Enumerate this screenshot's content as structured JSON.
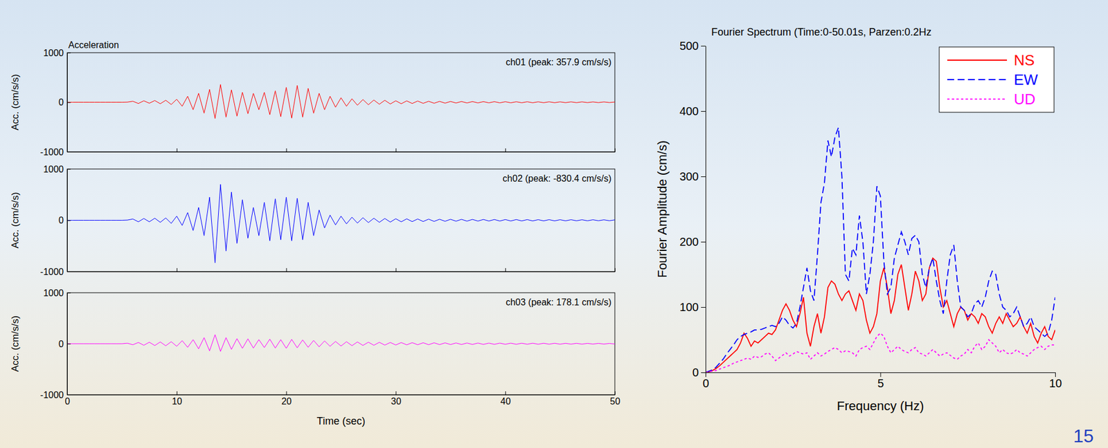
{
  "chart_data": [
    {
      "type": "line",
      "title": "Acceleration",
      "annotation": "ch01 (peak: 357.9 cm/s/s)",
      "y_label": "Acc. (cm/s/s)",
      "x": [
        0,
        0.5,
        1,
        1.5,
        2,
        2.5,
        3,
        3.5,
        4,
        4.5,
        5,
        5.5,
        6,
        6.5,
        7,
        7.5,
        8,
        8.5,
        9,
        9.5,
        10,
        10.5,
        11,
        11.5,
        12,
        12.5,
        13,
        13.5,
        14,
        14.5,
        15,
        15.5,
        16,
        16.5,
        17,
        17.5,
        18,
        18.5,
        19,
        19.5,
        20,
        20.5,
        21,
        21.5,
        22,
        22.5,
        23,
        23.5,
        24,
        24.5,
        25,
        25.5,
        26,
        26.5,
        27,
        27.5,
        28,
        28.5,
        29,
        29.5,
        30,
        30.5,
        31,
        31.5,
        32,
        32.5,
        33,
        33.5,
        34,
        34.5,
        35,
        35.5,
        36,
        36.5,
        37,
        37.5,
        38,
        38.5,
        39,
        39.5,
        40,
        40.5,
        41,
        41.5,
        42,
        42.5,
        43,
        43.5,
        44,
        44.5,
        45,
        45.5,
        46,
        46.5,
        47,
        47.5,
        48,
        48.5,
        49,
        49.5,
        50
      ],
      "series": [
        {
          "color": "#ff0000",
          "values": [
            0,
            0,
            0,
            0,
            0,
            0,
            0,
            0,
            0,
            0,
            0,
            3,
            20,
            -25,
            30,
            -20,
            35,
            -30,
            40,
            -45,
            60,
            -80,
            120,
            -150,
            180,
            -220,
            260,
            -330,
            357.9,
            -300,
            250,
            -280,
            200,
            -230,
            180,
            -150,
            200,
            -250,
            230,
            -290,
            300,
            -320,
            340,
            -300,
            280,
            -220,
            180,
            -150,
            120,
            -100,
            90,
            -80,
            70,
            -60,
            55,
            -50,
            45,
            -40,
            40,
            -35,
            30,
            -30,
            28,
            -25,
            25,
            -22,
            20,
            -20,
            18,
            -18,
            16,
            -15,
            15,
            -14,
            14,
            -13,
            13,
            -12,
            12,
            -12,
            11,
            -11,
            10,
            -10,
            10,
            -10,
            9,
            -9,
            9,
            -9,
            8,
            -8,
            8,
            -8,
            8,
            -7,
            7,
            -7,
            7,
            -6,
            5
          ]
        }
      ],
      "xlim": [
        0,
        50
      ],
      "xticks": [
        0,
        10,
        20,
        30,
        40,
        50
      ],
      "ylim": [
        -1000,
        1000
      ],
      "yticks": [
        -1000,
        0,
        1000
      ],
      "tick_labels": "y"
    },
    {
      "type": "line",
      "annotation": "ch02 (peak: -830.4 cm/s/s)",
      "y_label": "Acc. (cm/s/s)",
      "x": [
        0,
        0.5,
        1,
        1.5,
        2,
        2.5,
        3,
        3.5,
        4,
        4.5,
        5,
        5.5,
        6,
        6.5,
        7,
        7.5,
        8,
        8.5,
        9,
        9.5,
        10,
        10.5,
        11,
        11.5,
        12,
        12.5,
        13,
        13.5,
        14,
        14.5,
        15,
        15.5,
        16,
        16.5,
        17,
        17.5,
        18,
        18.5,
        19,
        19.5,
        20,
        20.5,
        21,
        21.5,
        22,
        22.5,
        23,
        23.5,
        24,
        24.5,
        25,
        25.5,
        26,
        26.5,
        27,
        27.5,
        28,
        28.5,
        29,
        29.5,
        30,
        30.5,
        31,
        31.5,
        32,
        32.5,
        33,
        33.5,
        34,
        34.5,
        35,
        35.5,
        36,
        36.5,
        37,
        37.5,
        38,
        38.5,
        39,
        39.5,
        40,
        40.5,
        41,
        41.5,
        42,
        42.5,
        43,
        43.5,
        44,
        44.5,
        45,
        45.5,
        46,
        46.5,
        47,
        47.5,
        48,
        48.5,
        49,
        49.5,
        50
      ],
      "series": [
        {
          "color": "#0000ff",
          "values": [
            0,
            0,
            0,
            0,
            0,
            0,
            0,
            0,
            0,
            0,
            0,
            4,
            25,
            -30,
            35,
            -30,
            40,
            -40,
            45,
            -60,
            80,
            -100,
            150,
            -200,
            250,
            -300,
            450,
            -830.4,
            700,
            -600,
            550,
            -450,
            400,
            -350,
            250,
            -300,
            350,
            -400,
            420,
            -380,
            450,
            -400,
            430,
            -380,
            350,
            -300,
            200,
            -150,
            100,
            -90,
            80,
            -70,
            60,
            -55,
            50,
            -45,
            40,
            -40,
            35,
            -35,
            30,
            -30,
            28,
            -26,
            25,
            -24,
            22,
            -22,
            20,
            -20,
            19,
            -18,
            18,
            -17,
            17,
            -16,
            16,
            -15,
            15,
            -15,
            14,
            -14,
            14,
            -13,
            13,
            -13,
            12,
            -12,
            12,
            -12,
            11,
            -11,
            11,
            -10,
            10,
            -10,
            10,
            -9,
            9,
            -9,
            8
          ]
        }
      ],
      "xlim": [
        0,
        50
      ],
      "xticks": [
        0,
        10,
        20,
        30,
        40,
        50
      ],
      "ylim": [
        -1000,
        1000
      ],
      "yticks": [
        -1000,
        0,
        1000
      ],
      "tick_labels": "y"
    },
    {
      "type": "line",
      "annotation": "ch03 (peak: 178.1 cm/s/s)",
      "y_label": "Acc. (cm/s/s)",
      "x_label": "Time (sec)",
      "x": [
        0,
        0.5,
        1,
        1.5,
        2,
        2.5,
        3,
        3.5,
        4,
        4.5,
        5,
        5.5,
        6,
        6.5,
        7,
        7.5,
        8,
        8.5,
        9,
        9.5,
        10,
        10.5,
        11,
        11.5,
        12,
        12.5,
        13,
        13.5,
        14,
        14.5,
        15,
        15.5,
        16,
        16.5,
        17,
        17.5,
        18,
        18.5,
        19,
        19.5,
        20,
        20.5,
        21,
        21.5,
        22,
        22.5,
        23,
        23.5,
        24,
        24.5,
        25,
        25.5,
        26,
        26.5,
        27,
        27.5,
        28,
        28.5,
        29,
        29.5,
        30,
        30.5,
        31,
        31.5,
        32,
        32.5,
        33,
        33.5,
        34,
        34.5,
        35,
        35.5,
        36,
        36.5,
        37,
        37.5,
        38,
        38.5,
        39,
        39.5,
        40,
        40.5,
        41,
        41.5,
        42,
        42.5,
        43,
        43.5,
        44,
        44.5,
        45,
        45.5,
        46,
        46.5,
        47,
        47.5,
        48,
        48.5,
        49,
        49.5,
        50
      ],
      "series": [
        {
          "color": "#ff00ff",
          "values": [
            0,
            0,
            0,
            0,
            0,
            0,
            0,
            0,
            0,
            0,
            0,
            10,
            -20,
            25,
            -30,
            30,
            -35,
            35,
            -40,
            40,
            -50,
            60,
            -70,
            80,
            -100,
            120,
            -140,
            178.1,
            -150,
            120,
            -110,
            100,
            -90,
            95,
            -85,
            80,
            -75,
            90,
            -85,
            80,
            -90,
            85,
            -80,
            75,
            -70,
            65,
            -60,
            55,
            -50,
            45,
            -45,
            40,
            -38,
            35,
            -33,
            30,
            -30,
            28,
            -27,
            25,
            -25,
            23,
            -22,
            21,
            -20,
            19,
            -19,
            18,
            -17,
            17,
            -16,
            15,
            -15,
            14,
            -14,
            13,
            -13,
            12,
            -12,
            12,
            -11,
            11,
            -11,
            10,
            -10,
            10,
            -10,
            9,
            -9,
            9,
            -9,
            8,
            -8,
            8,
            -8,
            7,
            -7,
            7,
            -7,
            6,
            -6
          ]
        }
      ],
      "xlim": [
        0,
        50
      ],
      "xticks": [
        0,
        10,
        20,
        30,
        40,
        50
      ],
      "ylim": [
        -1000,
        1000
      ],
      "yticks": [
        -1000,
        0,
        1000
      ]
    },
    {
      "type": "line",
      "title": "Fourier Spectrum (Time:0-50.01s, Parzen:0.2Hz",
      "x_label": "Frequency (Hz)",
      "y_label": "Fourier Amplitude (cm/s)",
      "x": [
        0,
        0.1,
        0.2,
        0.3,
        0.4,
        0.5,
        0.6,
        0.7,
        0.8,
        0.9,
        1,
        1.1,
        1.2,
        1.3,
        1.4,
        1.5,
        1.6,
        1.7,
        1.8,
        1.9,
        2,
        2.1,
        2.2,
        2.3,
        2.4,
        2.5,
        2.6,
        2.7,
        2.8,
        2.9,
        3,
        3.1,
        3.2,
        3.3,
        3.4,
        3.5,
        3.6,
        3.7,
        3.8,
        3.9,
        4,
        4.1,
        4.2,
        4.3,
        4.4,
        4.5,
        4.6,
        4.7,
        4.8,
        4.9,
        5,
        5.1,
        5.2,
        5.3,
        5.4,
        5.5,
        5.6,
        5.7,
        5.8,
        5.9,
        6,
        6.1,
        6.2,
        6.3,
        6.4,
        6.5,
        6.6,
        6.7,
        6.8,
        6.9,
        7,
        7.1,
        7.2,
        7.3,
        7.4,
        7.5,
        7.6,
        7.7,
        7.8,
        7.9,
        8,
        8.1,
        8.2,
        8.3,
        8.4,
        8.5,
        8.6,
        8.7,
        8.8,
        8.9,
        9,
        9.1,
        9.2,
        9.3,
        9.4,
        9.5,
        9.6,
        9.7,
        9.8,
        9.9,
        10
      ],
      "series": [
        {
          "name": "NS",
          "color": "#ff0000",
          "line_style": "solid",
          "values": [
            0,
            1,
            3,
            6,
            10,
            15,
            20,
            25,
            30,
            35,
            45,
            60,
            52,
            40,
            48,
            45,
            50,
            55,
            60,
            58,
            65,
            80,
            95,
            105,
            95,
            80,
            70,
            90,
            115,
            60,
            40,
            70,
            90,
            60,
            85,
            130,
            140,
            135,
            120,
            110,
            120,
            125,
            110,
            95,
            120,
            110,
            80,
            60,
            70,
            90,
            140,
            160,
            130,
            90,
            110,
            150,
            165,
            130,
            95,
            120,
            155,
            140,
            110,
            120,
            160,
            175,
            170,
            130,
            100,
            110,
            90,
            70,
            90,
            100,
            95,
            80,
            90,
            85,
            75,
            90,
            85,
            70,
            60,
            75,
            85,
            75,
            90,
            80,
            70,
            75,
            85,
            70,
            60,
            75,
            55,
            45,
            60,
            70,
            55,
            50,
            65
          ]
        },
        {
          "name": "EW",
          "color": "#0000ff",
          "line_style": "dashed",
          "values": [
            0,
            2,
            4,
            8,
            14,
            20,
            28,
            35,
            42,
            50,
            55,
            58,
            60,
            62,
            65,
            65,
            66,
            68,
            70,
            72,
            70,
            75,
            85,
            80,
            72,
            68,
            75,
            100,
            130,
            160,
            125,
            110,
            180,
            260,
            290,
            355,
            330,
            360,
            375,
            300,
            150,
            140,
            190,
            180,
            240,
            200,
            120,
            150,
            200,
            285,
            270,
            170,
            120,
            130,
            175,
            195,
            215,
            200,
            180,
            205,
            210,
            200,
            150,
            130,
            160,
            175,
            140,
            110,
            90,
            140,
            180,
            195,
            140,
            100,
            95,
            85,
            90,
            105,
            110,
            100,
            115,
            140,
            155,
            150,
            120,
            100,
            95,
            85,
            90,
            100,
            85,
            70,
            75,
            85,
            70,
            65,
            60,
            55,
            60,
            80,
            115
          ]
        },
        {
          "name": "UD",
          "color": "#ff00ff",
          "line_style": "dotted",
          "values": [
            0,
            1,
            2,
            3,
            5,
            7,
            9,
            11,
            14,
            16,
            18,
            20,
            22,
            20,
            25,
            23,
            24,
            28,
            30,
            25,
            18,
            22,
            26,
            30,
            25,
            28,
            32,
            30,
            28,
            30,
            20,
            25,
            30,
            25,
            28,
            32,
            35,
            38,
            35,
            30,
            33,
            32,
            30,
            25,
            35,
            38,
            40,
            35,
            45,
            55,
            60,
            55,
            40,
            30,
            35,
            40,
            35,
            32,
            30,
            35,
            38,
            30,
            28,
            25,
            30,
            35,
            30,
            25,
            28,
            30,
            26,
            22,
            20,
            25,
            28,
            35,
            30,
            40,
            45,
            35,
            40,
            50,
            45,
            40,
            30,
            35,
            30,
            28,
            30,
            35,
            30,
            28,
            25,
            30,
            35,
            38,
            40,
            35,
            40,
            42,
            42
          ]
        }
      ],
      "xlim": [
        0,
        10
      ],
      "xticks": [
        0,
        5,
        10
      ],
      "ylim": [
        0,
        500
      ],
      "yticks": [
        0,
        100,
        200,
        300,
        400,
        500
      ],
      "legend": "upper right"
    }
  ],
  "slide": {
    "page_number": "15"
  }
}
